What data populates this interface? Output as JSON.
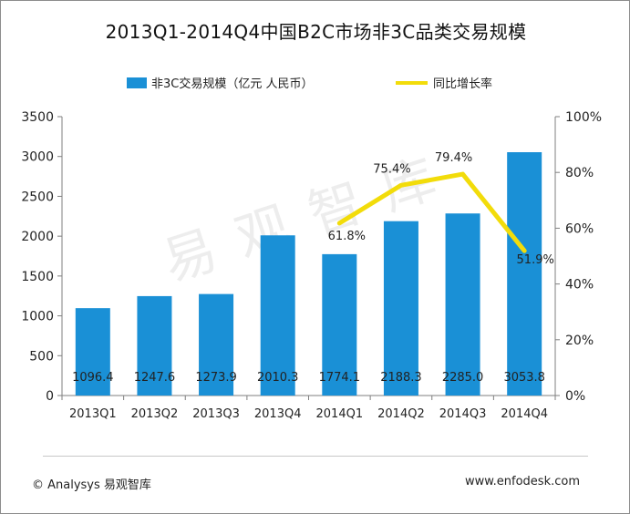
{
  "chart_data": {
    "type": "bar+line",
    "title": "2013Q1-2014Q4中国B2C市场非3C品类交易规模",
    "categories": [
      "2013Q1",
      "2013Q2",
      "2013Q3",
      "2013Q4",
      "2014Q1",
      "2014Q2",
      "2014Q3",
      "2014Q4"
    ],
    "series": [
      {
        "name": "非3C交易规模（亿元 人民币）",
        "type": "bar",
        "axis": "left",
        "color": "#1a90d6",
        "values": [
          1096.4,
          1247.6,
          1273.9,
          2010.3,
          1774.1,
          2188.3,
          2285.0,
          3053.8
        ],
        "labels": [
          "1096.4",
          "1247.6",
          "1273.9",
          "2010.3",
          "1774.1",
          "2188.3",
          "2285.0",
          "3053.8"
        ]
      },
      {
        "name": "同比增长率",
        "type": "line",
        "axis": "right",
        "color": "#f2dc0a",
        "values": [
          null,
          null,
          null,
          null,
          61.8,
          75.4,
          79.4,
          51.9
        ],
        "labels": [
          "",
          "",
          "",
          "",
          "61.8%",
          "75.4%",
          "79.4%",
          "51.9%"
        ]
      }
    ],
    "y_left": {
      "min": 0,
      "max": 3500,
      "ticks": [
        "0",
        "500",
        "1000",
        "1500",
        "2000",
        "2500",
        "3000",
        "3500"
      ]
    },
    "y_right": {
      "min": 0,
      "max": 100,
      "ticks": [
        "0%",
        "20%",
        "40%",
        "60%",
        "80%",
        "100%"
      ]
    },
    "legend_position": "top",
    "grid": false
  },
  "watermark": "易观智库",
  "footer": {
    "source": "© Analysys 易观智库",
    "url": "www.enfodesk.com"
  }
}
